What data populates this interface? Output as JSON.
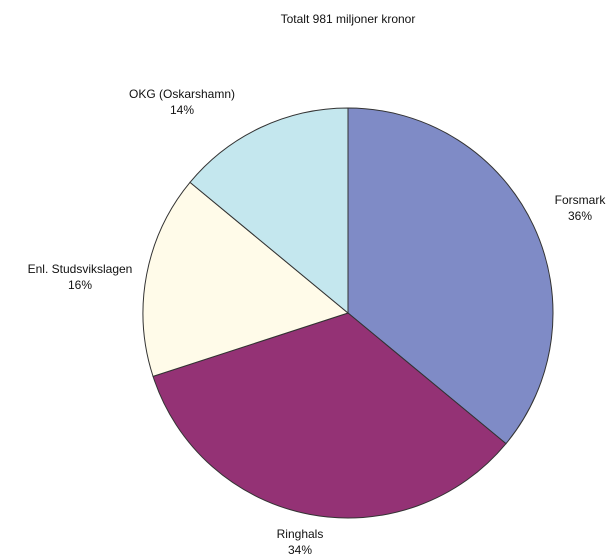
{
  "chart_data": {
    "type": "pie",
    "title": "Totalt 981 miljoner kronor",
    "categories": [
      "Forsmark",
      "Ringhals",
      "Enl. Studsvikslagen",
      "OKG (Oskarshamn)"
    ],
    "values": [
      36,
      34,
      16,
      14
    ],
    "value_labels": [
      "36%",
      "34%",
      "16%",
      "14%"
    ],
    "colors": [
      "#7f8bc6",
      "#943275",
      "#fffbe9",
      "#c4e7ee"
    ]
  }
}
